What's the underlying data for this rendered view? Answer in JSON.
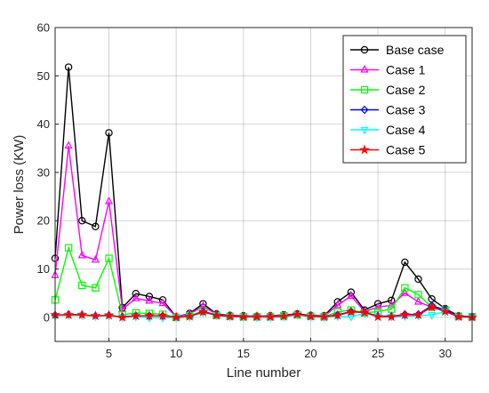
{
  "chart_data": {
    "type": "line",
    "xlabel": "Line number",
    "ylabel": "Power loss (KW)",
    "xlim": [
      1,
      32
    ],
    "ylim": [
      -5,
      60
    ],
    "xticks": [
      5,
      10,
      15,
      20,
      25,
      30
    ],
    "yticks": [
      0,
      10,
      20,
      30,
      40,
      50,
      60
    ],
    "grid": true,
    "legend_position": "top-right",
    "x": [
      1,
      2,
      3,
      4,
      5,
      6,
      7,
      8,
      9,
      10,
      11,
      12,
      13,
      14,
      15,
      16,
      17,
      18,
      19,
      20,
      21,
      22,
      23,
      24,
      25,
      26,
      27,
      28,
      29,
      30,
      31,
      32
    ],
    "series": [
      {
        "name": "Base case",
        "color": "#000000",
        "marker": "circle",
        "values": [
          12.2,
          51.8,
          20,
          18.8,
          38.2,
          2,
          4.9,
          4.3,
          3.6,
          0.1,
          0.8,
          2.8,
          0.7,
          0.4,
          0.3,
          0.2,
          0.3,
          0.5,
          0.7,
          0.4,
          0.3,
          3.2,
          5.2,
          1.5,
          2.8,
          3.5,
          11.4,
          7.9,
          3.8,
          1.8,
          0.3,
          0.1
        ]
      },
      {
        "name": "Case 1",
        "color": "#ff00ff",
        "marker": "triangle-up",
        "values": [
          8.7,
          35.5,
          12.8,
          11.9,
          24,
          1.7,
          3.9,
          3.4,
          2.9,
          0.1,
          0.7,
          2.3,
          0.6,
          0.3,
          0.2,
          0.2,
          0.3,
          0.4,
          0.6,
          0.3,
          0.2,
          2.5,
          4.4,
          1.2,
          2.1,
          2.5,
          5,
          3.2,
          2.1,
          1.6,
          0.2,
          0.1
        ]
      },
      {
        "name": "Case 2",
        "color": "#00ff00",
        "marker": "square",
        "values": [
          3.6,
          14.4,
          6.6,
          6.1,
          12.2,
          0.5,
          0.9,
          0.8,
          0.6,
          0,
          0.3,
          1.3,
          0.4,
          0.2,
          0.1,
          0.1,
          0.1,
          0.3,
          0.5,
          0.2,
          0.1,
          1.1,
          1.5,
          0.9,
          1.2,
          1.7,
          6.1,
          4.7,
          2.1,
          1.5,
          0.2,
          0.1
        ]
      },
      {
        "name": "Case 3",
        "color": "#0000ff",
        "marker": "diamond",
        "values": [
          0.4,
          0.6,
          0.5,
          0.3,
          0.4,
          0.1,
          0.3,
          0.3,
          0.3,
          0,
          0.2,
          1.2,
          0.5,
          0.2,
          0.1,
          0.1,
          0.1,
          0.2,
          0.6,
          0.2,
          0.1,
          0.5,
          1.2,
          1,
          0.3,
          0.2,
          0.6,
          0.6,
          2.4,
          1.5,
          0.2,
          0.1
        ]
      },
      {
        "name": "Case 4",
        "color": "#00ffff",
        "marker": "triangle-down",
        "values": [
          0.3,
          0.4,
          0.4,
          0.2,
          0.3,
          0,
          0.1,
          -0.1,
          -0.1,
          0,
          0.1,
          1,
          0.4,
          0.1,
          0.1,
          0,
          0,
          0.1,
          0.5,
          0.1,
          0,
          0.2,
          0.1,
          0.8,
          0.2,
          0.1,
          0.2,
          0.3,
          0.5,
          1.2,
          0.1,
          0
        ]
      },
      {
        "name": "Case 5",
        "color": "#ff0000",
        "marker": "star",
        "values": [
          0.5,
          0.5,
          0.5,
          0.3,
          0.4,
          0,
          0.3,
          0.3,
          0.3,
          0,
          0.2,
          1.1,
          0.4,
          0.2,
          0.1,
          0.1,
          0.1,
          0.2,
          0.6,
          0.2,
          0.1,
          0.4,
          1.1,
          1,
          0.1,
          0.1,
          0.5,
          0.5,
          2.1,
          1.2,
          0.1,
          0
        ]
      }
    ]
  }
}
